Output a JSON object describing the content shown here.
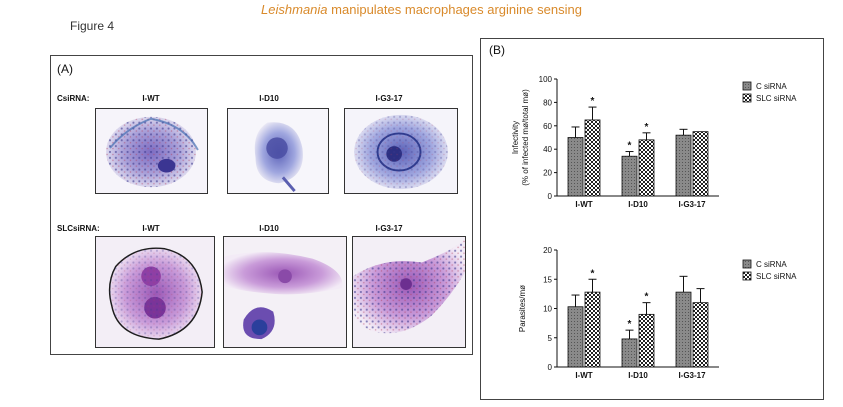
{
  "header": {
    "title_italic": "Leishmania",
    "title_rest": " manipulates macrophages arginine sensing",
    "figure_label": "Figure 4"
  },
  "panel_a": {
    "tag": "(A)",
    "rows": [
      {
        "label": "CsiRNA:",
        "cells": [
          "I-WT",
          "I-D10",
          "I-G3-17"
        ]
      },
      {
        "label": "SLCsiRNA:",
        "cells": [
          "I-WT",
          "I-D10",
          "I-G3-17"
        ]
      }
    ]
  },
  "panel_b": {
    "tag": "(B)"
  },
  "colors": {
    "c_sirna": "#8a8a8a",
    "slc_sirna": "#ffffff",
    "title": "#d98a2b"
  },
  "chart_data": [
    {
      "type": "bar",
      "categories": [
        "I-WT",
        "I-D10",
        "I-G3-17"
      ],
      "ylabel_line1": "Infectivity",
      "ylabel_line2": "(% of infected mø/total mø)",
      "ylim": [
        0,
        100
      ],
      "yticks": [
        "0",
        "20",
        "40",
        "60",
        "80",
        "100"
      ],
      "series": [
        {
          "name": "C siRNA",
          "values": [
            50,
            34,
            52
          ],
          "errors": [
            9,
            4,
            5
          ]
        },
        {
          "name": "SLC siRNA",
          "values": [
            65,
            48,
            55
          ],
          "errors": [
            11,
            6,
            0
          ]
        }
      ],
      "significance": [
        {
          "category": "I-WT",
          "series": "SLC siRNA",
          "mark": "*"
        },
        {
          "category": "I-D10",
          "series": "C siRNA",
          "mark": "*"
        },
        {
          "category": "I-D10",
          "series": "SLC siRNA",
          "mark": "*"
        }
      ],
      "legend": [
        "C siRNA",
        "SLC siRNA"
      ],
      "legend_position": "top-right"
    },
    {
      "type": "bar",
      "categories": [
        "I-WT",
        "I-D10",
        "I-G3-17"
      ],
      "ylabel_line1": "Parasites/mø",
      "ylabel_line2": "",
      "ylim": [
        0,
        20
      ],
      "yticks": [
        "0",
        "5",
        "10",
        "15",
        "20"
      ],
      "series": [
        {
          "name": "C siRNA",
          "values": [
            10.3,
            4.8,
            12.8
          ],
          "errors": [
            2.0,
            1.5,
            2.7
          ]
        },
        {
          "name": "SLC siRNA",
          "values": [
            12.8,
            9.0,
            11.0
          ],
          "errors": [
            2.2,
            2.0,
            2.4
          ]
        }
      ],
      "significance": [
        {
          "category": "I-WT",
          "series": "SLC siRNA",
          "mark": "*"
        },
        {
          "category": "I-D10",
          "series": "C siRNA",
          "mark": "*"
        },
        {
          "category": "I-D10",
          "series": "SLC siRNA",
          "mark": "*"
        }
      ],
      "legend": [
        "C siRNA",
        "SLC siRNA"
      ],
      "legend_position": "top-right"
    }
  ]
}
